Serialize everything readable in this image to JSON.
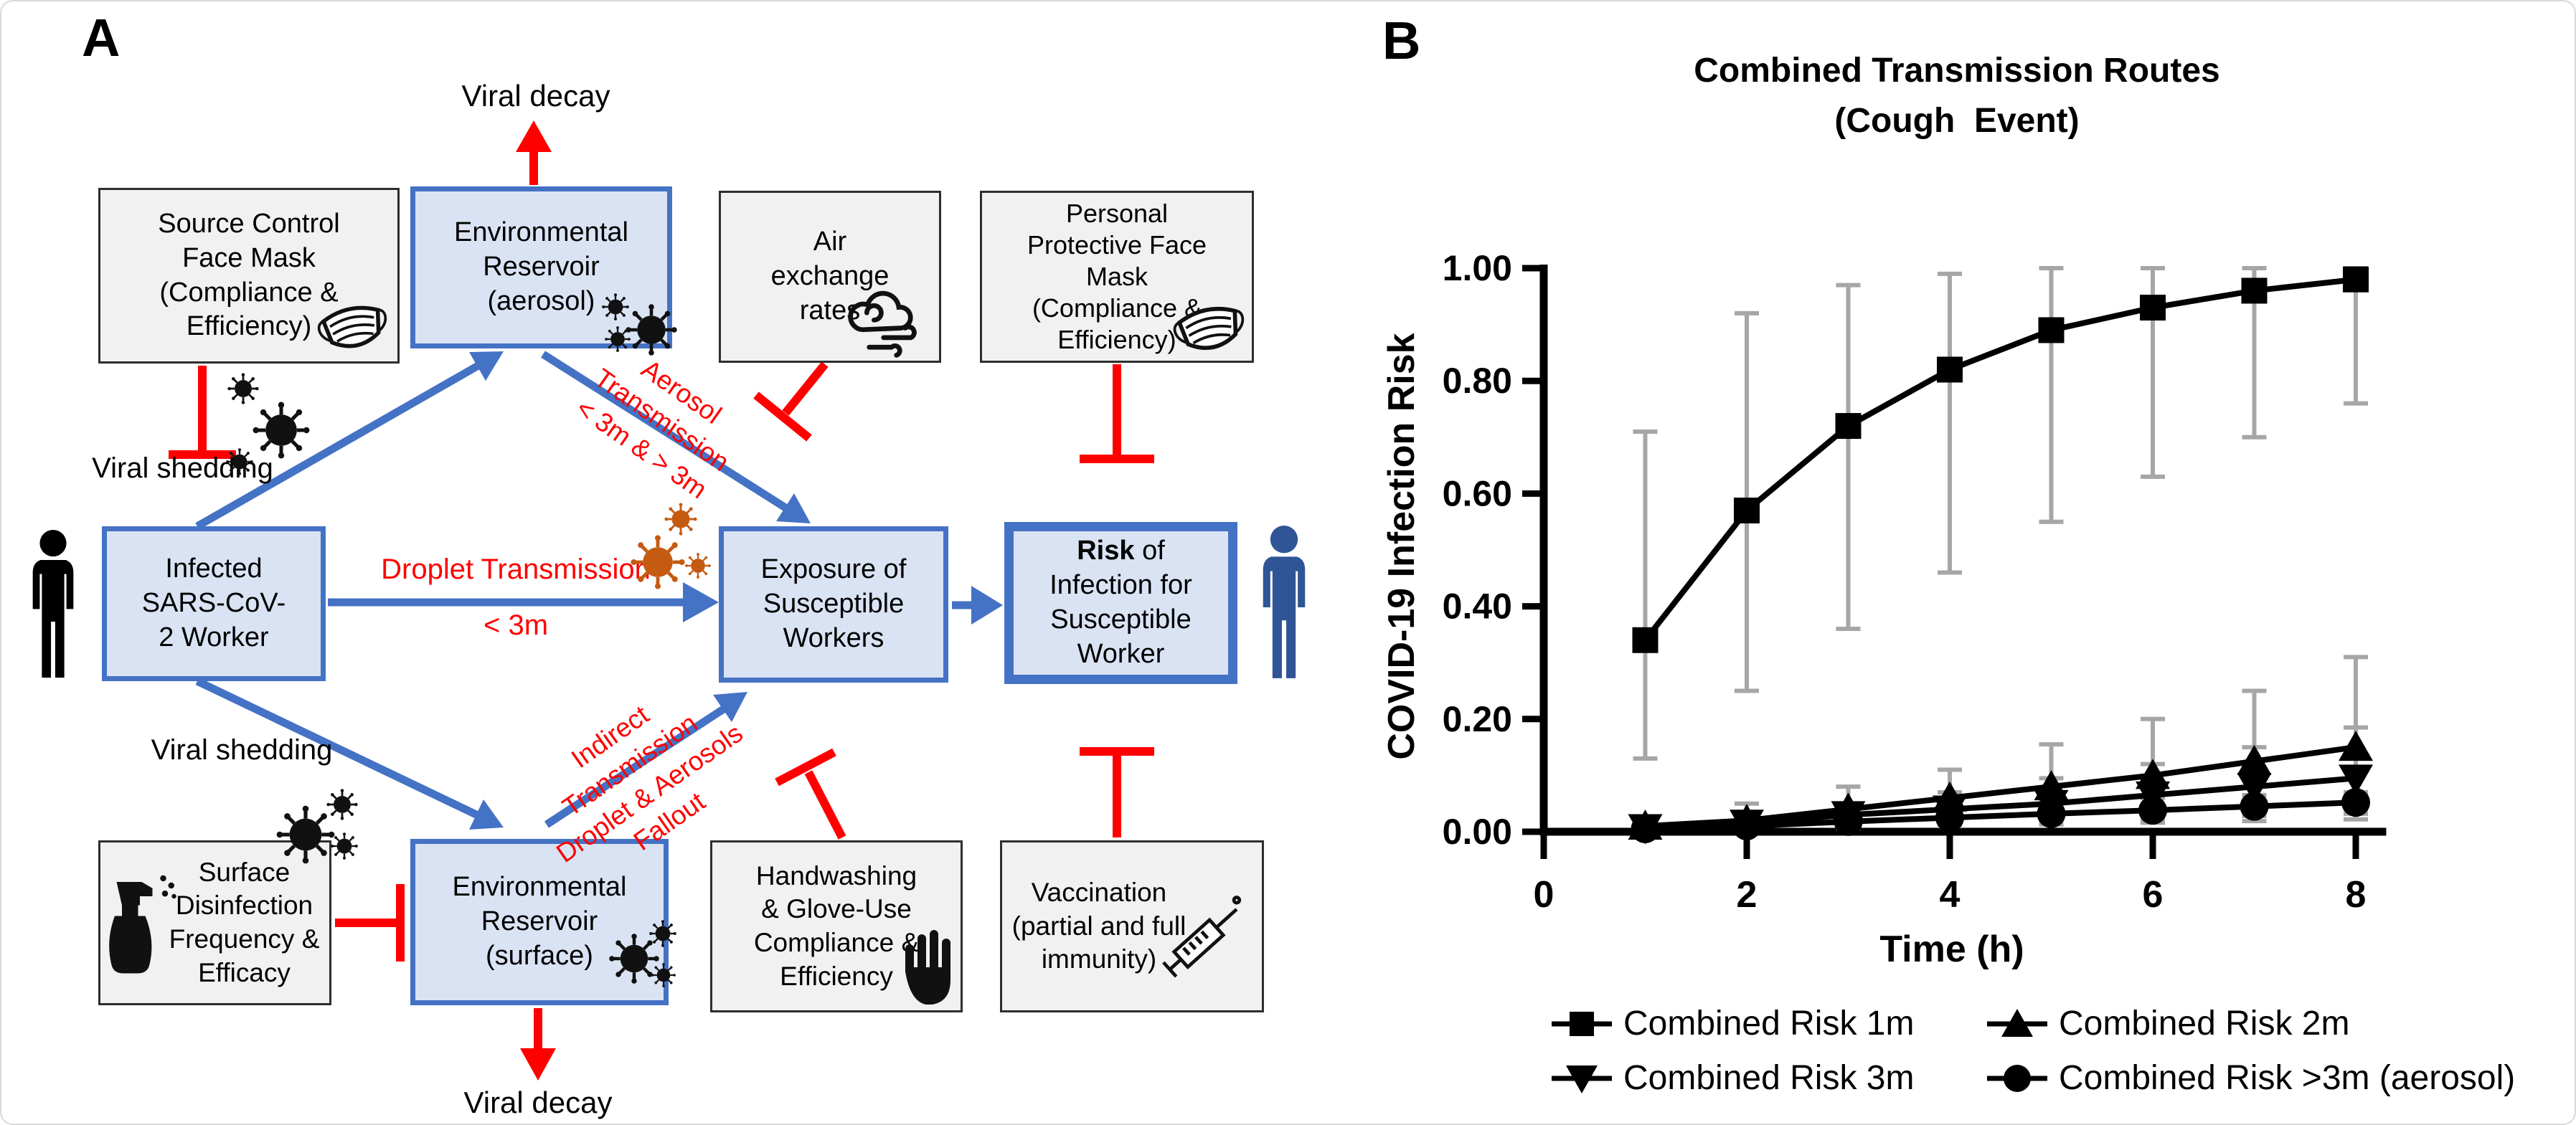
{
  "panelA": {
    "label": "A",
    "viral_decay_top": "Viral decay",
    "viral_decay_bottom": "Viral decay",
    "viral_shedding_top": "Viral shedding",
    "viral_shedding_bottom": "Viral shedding",
    "boxes": {
      "source_control": "Source Control\nFace Mask\n(Compliance &\nEfficiency)",
      "env_aerosol": "Environmental\nReservoir\n(aerosol)",
      "air_exchange": "Air\nexchange\nrates",
      "ppe_mask": "Personal\nProtective Face\nMask\n(Compliance &\nEfficiency)",
      "infected_worker": "Infected\nSARS-CoV-\n2 Worker",
      "exposure": "Exposure of\nSusceptible\nWorkers",
      "risk_bold": "Risk",
      "risk_rest": " of\nInfection for\nSusceptible\nWorker",
      "surface_disinfection": "Surface\nDisinfection\nFrequency &\nEfficacy",
      "env_surface": "Environmental\nReservoir\n(surface)",
      "handwashing": "Handwashing\n& Glove-Use\nCompliance &\nEfficiency",
      "vaccination": "Vaccination\n(partial and full\nimmunity)"
    },
    "edge_labels": {
      "droplet": "Droplet Transmission",
      "droplet_distance": "< 3m",
      "aerosol": "Aerosol\nTransmission\n< 3m & > 3m",
      "indirect": "Indirect\nTransmission\nDroplet & Aerosols\nFallout"
    },
    "icons": {
      "mask": "face-mask-icon",
      "wind": "air-exchange-wind-icon",
      "spray": "disinfectant-spray-icon",
      "hand": "hand-icon",
      "syringe": "syringe-icon",
      "virus": "virus-icon",
      "person_infected": "infected-worker-person-icon",
      "person_susceptible": "susceptible-worker-person-icon"
    },
    "colors": {
      "blue": "#4472c4",
      "blue_fill": "#dae3f3",
      "red": "#ff0000",
      "gray_fill": "#f1f1f1",
      "virus_black": "#111111",
      "virus_orange": "#c55a11",
      "person_black": "#000000",
      "person_blue": "#2f5597"
    }
  },
  "panelB": {
    "label": "B"
  },
  "chart_data": {
    "type": "line",
    "title": "Combined Transmission Routes\n(Cough  Event)",
    "xlabel": "Time (h)",
    "ylabel": "COVID-19 Infection Risk",
    "x": [
      1,
      2,
      3,
      4,
      5,
      6,
      7,
      8
    ],
    "xlim": [
      0,
      8.3
    ],
    "ylim": [
      0,
      1.0
    ],
    "x_ticks": [
      0,
      2,
      4,
      6,
      8
    ],
    "y_ticks": [
      "1.00",
      "0.80",
      "0.60",
      "0.40",
      "0.20",
      "0.00"
    ],
    "grid": false,
    "legend_position": "bottom",
    "error_bar_color": "#a6a6a6",
    "line_color": "#000000",
    "series": [
      {
        "name": "Combined Risk 1m",
        "marker": "square",
        "values": [
          0.34,
          0.57,
          0.72,
          0.82,
          0.89,
          0.93,
          0.96,
          0.98
        ],
        "err_lo": [
          0.13,
          0.25,
          0.36,
          0.46,
          0.55,
          0.63,
          0.7,
          0.76
        ],
        "err_hi": [
          0.71,
          0.92,
          0.97,
          0.99,
          1.0,
          1.0,
          1.0,
          1.0
        ]
      },
      {
        "name": "Combined Risk 2m",
        "marker": "triangle-up",
        "values": [
          0.01,
          0.02,
          0.04,
          0.06,
          0.08,
          0.1,
          0.125,
          0.15
        ],
        "err_lo": [
          0.002,
          0.005,
          0.01,
          0.015,
          0.02,
          0.03,
          0.035,
          0.04
        ],
        "err_hi": [
          0.02,
          0.05,
          0.08,
          0.11,
          0.155,
          0.2,
          0.25,
          0.31
        ]
      },
      {
        "name": "Combined Risk 3m",
        "marker": "triangle-down",
        "values": [
          0.007,
          0.015,
          0.03,
          0.04,
          0.05,
          0.065,
          0.08,
          0.095
        ],
        "err_lo": [
          0.001,
          0.004,
          0.008,
          0.012,
          0.018,
          0.022,
          0.028,
          0.032
        ],
        "err_hi": [
          0.015,
          0.03,
          0.05,
          0.07,
          0.095,
          0.12,
          0.15,
          0.185
        ]
      },
      {
        "name": "Combined Risk >3m (aerosol)",
        "marker": "circle",
        "values": [
          0.005,
          0.01,
          0.018,
          0.025,
          0.032,
          0.038,
          0.045,
          0.052
        ],
        "err_lo": [
          0.001,
          0.003,
          0.006,
          0.01,
          0.013,
          0.016,
          0.019,
          0.022
        ],
        "err_hi": [
          0.012,
          0.022,
          0.035,
          0.048,
          0.055,
          0.06,
          0.065,
          0.07
        ]
      }
    ]
  }
}
